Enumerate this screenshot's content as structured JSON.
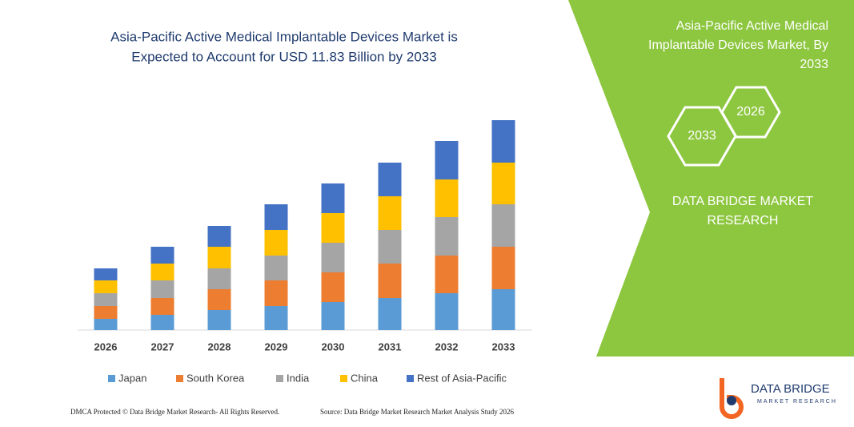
{
  "chart_data": {
    "type": "stacked_bar",
    "title": [
      "Asia-Pacific Active Medical Implantable Devices Market is",
      "Expected to Account for USD 11.83 Billion by 2033"
    ],
    "categories": [
      "2026",
      "2027",
      "2028",
      "2029",
      "2030",
      "2031",
      "2032",
      "2033"
    ],
    "series": [
      {
        "name": "Japan",
        "color": "#5b9bd5",
        "values": [
          14,
          19,
          25,
          30,
          35,
          40,
          46,
          51
        ]
      },
      {
        "name": "South Korea",
        "color": "#ed7d31",
        "values": [
          16,
          21,
          26,
          32,
          37,
          43,
          47,
          53
        ]
      },
      {
        "name": "India",
        "color": "#a5a5a5",
        "values": [
          16,
          22,
          26,
          31,
          37,
          42,
          48,
          53
        ]
      },
      {
        "name": "China",
        "color": "#ffc000",
        "values": [
          16,
          21,
          27,
          32,
          37,
          42,
          47,
          52
        ]
      },
      {
        "name": "Rest of Asia-Pacific",
        "color": "#4472c4",
        "values": [
          15,
          21,
          26,
          32,
          37,
          42,
          48,
          53
        ]
      }
    ]
  },
  "panel": {
    "title": [
      "Asia-Pacific Active Medical",
      "Implantable Devices Market, By",
      "2033"
    ],
    "hexagons": [
      "2026",
      "2033"
    ],
    "brand": [
      "DATA BRIDGE MARKET",
      "RESEARCH"
    ]
  },
  "logo": {
    "name": "DATA BRIDGE",
    "tagline": "MARKET RESEARCH"
  },
  "footer": {
    "left": "DMCA Protected © Data Bridge Market Research- All Rights Reserved.",
    "right": "Source: Data Bridge Market Research Market Analysis Study 2026"
  }
}
